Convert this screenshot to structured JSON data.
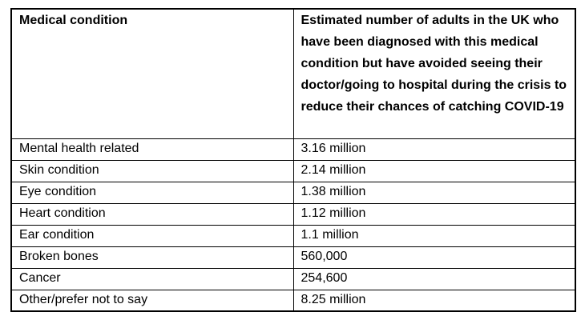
{
  "page": {
    "background_color": "#ffffff",
    "text_color": "#000000",
    "border_color": "#000000"
  },
  "table": {
    "header": {
      "col1": "Medical condition",
      "col2": "Estimated number of adults in the UK who have been diagnosed with this medical condition but have avoided seeing their doctor/going to hospital during the crisis to reduce their chances of catching COVID-19"
    },
    "rows": [
      {
        "condition": "Mental health related",
        "value": "3.16 million"
      },
      {
        "condition": "Skin condition",
        "value": "2.14 million"
      },
      {
        "condition": "Eye condition",
        "value": "1.38 million"
      },
      {
        "condition": "Heart condition",
        "value": "1.12 million"
      },
      {
        "condition": "Ear condition",
        "value": "1.1 million"
      },
      {
        "condition": "Broken bones",
        "value": "560,000"
      },
      {
        "condition": "Cancer",
        "value": "254,600"
      },
      {
        "condition": "Other/prefer not to say",
        "value": "8.25 million"
      }
    ]
  }
}
